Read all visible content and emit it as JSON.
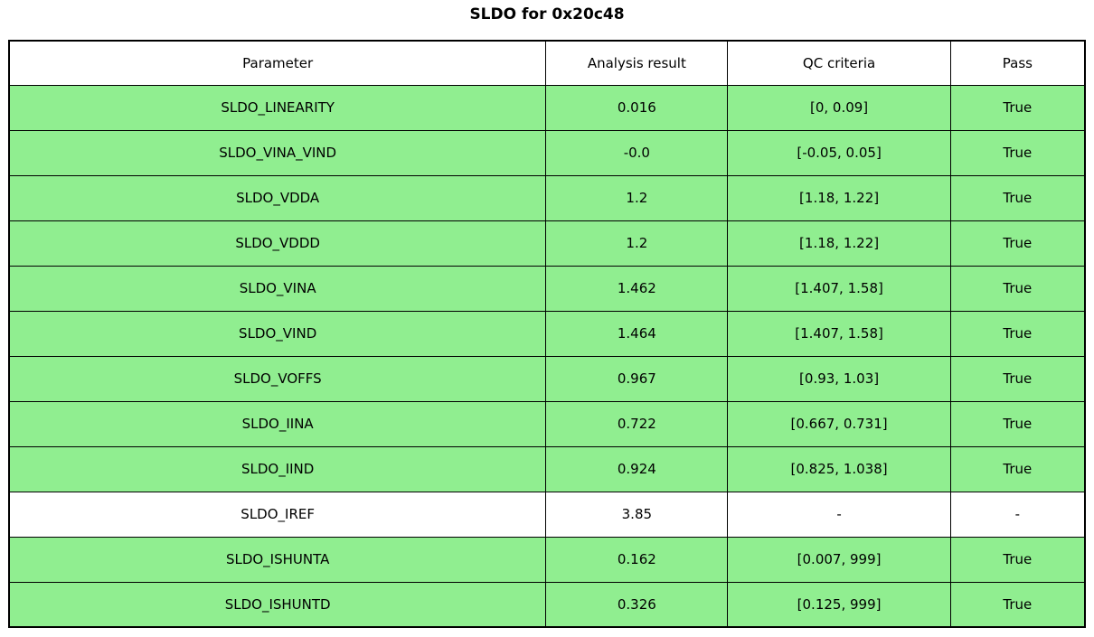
{
  "title": "SLDO for 0x20c48",
  "table": {
    "columns": [
      "Parameter",
      "Analysis result",
      "QC criteria",
      "Pass"
    ],
    "rows": [
      {
        "parameter": "SLDO_LINEARITY",
        "result": "0.016",
        "criteria": "[0, 0.09]",
        "pass": "True",
        "highlight": true
      },
      {
        "parameter": "SLDO_VINA_VIND",
        "result": "-0.0",
        "criteria": "[-0.05, 0.05]",
        "pass": "True",
        "highlight": true
      },
      {
        "parameter": "SLDO_VDDA",
        "result": "1.2",
        "criteria": "[1.18, 1.22]",
        "pass": "True",
        "highlight": true
      },
      {
        "parameter": "SLDO_VDDD",
        "result": "1.2",
        "criteria": "[1.18, 1.22]",
        "pass": "True",
        "highlight": true
      },
      {
        "parameter": "SLDO_VINA",
        "result": "1.462",
        "criteria": "[1.407, 1.58]",
        "pass": "True",
        "highlight": true
      },
      {
        "parameter": "SLDO_VIND",
        "result": "1.464",
        "criteria": "[1.407, 1.58]",
        "pass": "True",
        "highlight": true
      },
      {
        "parameter": "SLDO_VOFFS",
        "result": "0.967",
        "criteria": "[0.93, 1.03]",
        "pass": "True",
        "highlight": true
      },
      {
        "parameter": "SLDO_IINA",
        "result": "0.722",
        "criteria": "[0.667, 0.731]",
        "pass": "True",
        "highlight": true
      },
      {
        "parameter": "SLDO_IIND",
        "result": "0.924",
        "criteria": "[0.825, 1.038]",
        "pass": "True",
        "highlight": true
      },
      {
        "parameter": "SLDO_IREF",
        "result": "3.85",
        "criteria": "-",
        "pass": "-",
        "highlight": false
      },
      {
        "parameter": "SLDO_ISHUNTA",
        "result": "0.162",
        "criteria": "[0.007, 999]",
        "pass": "True",
        "highlight": true
      },
      {
        "parameter": "SLDO_ISHUNTD",
        "result": "0.326",
        "criteria": "[0.125, 999]",
        "pass": "True",
        "highlight": true
      }
    ],
    "colors": {
      "pass_row": "#90EE90",
      "neutral_row": "#FFFFFF",
      "border": "#000000"
    }
  }
}
